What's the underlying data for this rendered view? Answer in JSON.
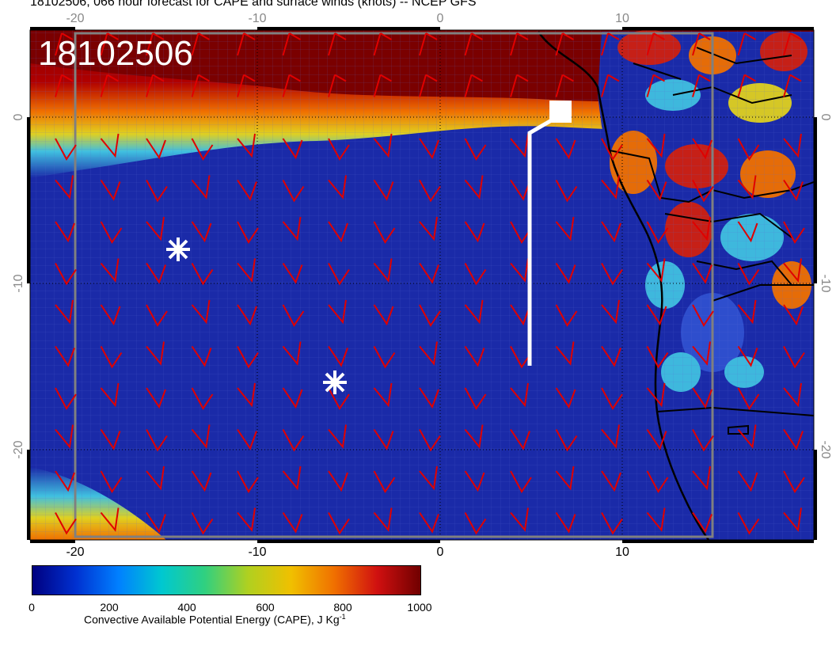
{
  "title": "18102506, 066 hour forecast for CAPE and surface winds (knots) -- NCEP GFS",
  "stamp": "18102506",
  "lon_ticks_top": [
    "-20",
    "-10",
    "0",
    "10"
  ],
  "lon_ticks_bottom": [
    "-20",
    "-10",
    "0",
    "10"
  ],
  "lat_ticks": [
    "0",
    "-10",
    "-20"
  ],
  "colorbar": {
    "label": "Convective Available Potential Energy (CAPE), J Kg",
    "label_sup": "-1",
    "ticks": [
      "0",
      "200",
      "400",
      "600",
      "800",
      "1000"
    ],
    "colors": [
      "#000080",
      "#0030d0",
      "#0080ff",
      "#00c8d0",
      "#30d080",
      "#b0d020",
      "#f0c000",
      "#f07000",
      "#d01010",
      "#700000"
    ]
  },
  "colors": {
    "ocean": "#1a2aa8",
    "high_cape": "#800000",
    "wind_barbs": "#e00000",
    "coast": "#000000",
    "track": "#ffffff",
    "grid_box": "#808080"
  },
  "markers": [
    {
      "name": "star-1",
      "lon": -14.4,
      "lat": -7.5
    },
    {
      "name": "star-2",
      "lon": -5.8,
      "lat": -15.6
    }
  ]
}
